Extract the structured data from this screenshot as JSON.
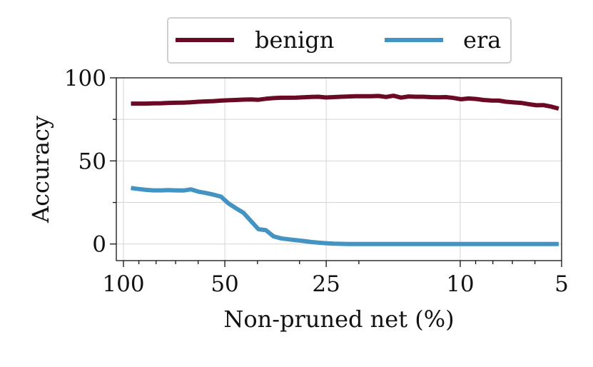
{
  "chart_data": {
    "type": "line",
    "xlabel": "Non-pruned net (%)",
    "ylabel": "Accuracy",
    "xscale": "log",
    "x_direction": "decreasing",
    "xlim": [
      105,
      5
    ],
    "ylim": [
      -10,
      100
    ],
    "grid": true,
    "legend_position": "top-center",
    "x_ticks": [
      100,
      50,
      25,
      10,
      5
    ],
    "x_tick_labels": [
      "100",
      "50",
      "25",
      "10",
      "5"
    ],
    "x_minor_ticks": [
      90,
      80,
      70,
      60,
      40,
      30,
      20,
      9,
      8,
      7,
      6
    ],
    "y_ticks": [
      0,
      50,
      100
    ],
    "y_tick_labels": [
      "0",
      "50",
      "100"
    ],
    "y_minor_ticks": [
      25,
      75
    ],
    "x": [
      95.0,
      90.25,
      85.74,
      81.45,
      77.38,
      73.51,
      69.83,
      66.34,
      63.02,
      59.87,
      56.88,
      54.04,
      51.33,
      48.77,
      46.33,
      44.01,
      41.81,
      39.72,
      37.74,
      35.85,
      34.06,
      32.35,
      30.74,
      29.2,
      27.74,
      26.35,
      25.03,
      23.78,
      22.59,
      21.46,
      20.39,
      19.37,
      18.4,
      17.48,
      16.61,
      15.78,
      14.99,
      14.24,
      13.53,
      12.85,
      12.21,
      11.6,
      11.02,
      10.47,
      9.94,
      9.45,
      8.97,
      8.53,
      8.1,
      7.69,
      7.31,
      6.94,
      6.6,
      6.27,
      5.95,
      5.66,
      5.37,
      5.1
    ],
    "series": [
      {
        "name": "benign",
        "color": "#6b0a25",
        "values": [
          84.5,
          84.5,
          84.5,
          84.6,
          84.7,
          84.9,
          85.0,
          85.1,
          85.3,
          85.6,
          85.8,
          86.0,
          86.3,
          86.5,
          86.7,
          86.9,
          87.0,
          86.8,
          87.4,
          87.8,
          88.0,
          88.0,
          88.1,
          88.3,
          88.5,
          88.6,
          88.2,
          88.4,
          88.6,
          88.8,
          88.9,
          88.9,
          88.9,
          89.1,
          88.5,
          89.2,
          88.1,
          88.8,
          88.6,
          88.6,
          88.4,
          88.3,
          88.4,
          87.9,
          87.1,
          87.6,
          87.3,
          86.7,
          86.4,
          86.3,
          85.6,
          85.2,
          84.9,
          84.2,
          83.5,
          83.6,
          82.7,
          81.5
        ]
      },
      {
        "name": "era",
        "color": "#4393c3",
        "values": [
          33.7,
          33.1,
          32.6,
          32.3,
          32.3,
          32.4,
          32.3,
          32.2,
          32.9,
          31.5,
          30.7,
          29.7,
          28.5,
          24.4,
          21.5,
          18.8,
          13.8,
          8.9,
          8.3,
          4.6,
          3.4,
          2.8,
          2.3,
          1.8,
          1.2,
          0.8,
          0.5,
          0.2,
          0.1,
          0.0,
          0.0,
          0.0,
          0.0,
          0.0,
          0.0,
          0.0,
          0.0,
          0.0,
          0.0,
          0.0,
          0.0,
          0.0,
          0.0,
          0.0,
          0.0,
          0.0,
          0.0,
          0.0,
          0.0,
          0.0,
          0.0,
          0.0,
          0.0,
          0.0,
          0.0,
          0.0,
          0.0,
          0.0
        ]
      }
    ]
  }
}
